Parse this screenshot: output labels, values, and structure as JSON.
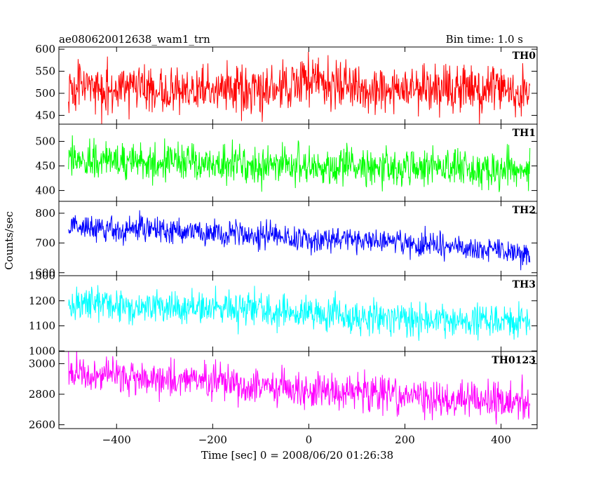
{
  "chart_data": {
    "type": "line",
    "title": "ae080620012638_wam1_trn",
    "subtitle": "Bin time: 1.0 s",
    "xlabel": "Time [sec] 0 = 2008/06/20 01:26:38",
    "ylabel": "Counts/sec",
    "xlim": [
      -520,
      475
    ],
    "x_data_range": [
      -500,
      460
    ],
    "x_ticks": [
      -400,
      -200,
      0,
      200,
      400
    ],
    "x_tick_labels": [
      "−400",
      "−200",
      "0",
      "200",
      "400"
    ],
    "grid": false,
    "panels": [
      {
        "name": "TH0",
        "color": "#ff0000",
        "ylim": [
          430,
          605
        ],
        "y_ticks": [
          450,
          500,
          550,
          600
        ],
        "mean_profile": [
          [
            -500,
            512
          ],
          [
            -300,
            508
          ],
          [
            -100,
            508
          ],
          [
            -30,
            518
          ],
          [
            10,
            528
          ],
          [
            60,
            522
          ],
          [
            150,
            505
          ],
          [
            300,
            510
          ],
          [
            460,
            508
          ]
        ],
        "noise_sd": 27
      },
      {
        "name": "TH1",
        "color": "#00ff00",
        "ylim": [
          378,
          535
        ],
        "y_ticks": [
          400,
          450,
          500
        ],
        "mean_profile": [
          [
            -500,
            462
          ],
          [
            -400,
            458
          ],
          [
            -200,
            455
          ],
          [
            0,
            450
          ],
          [
            200,
            446
          ],
          [
            460,
            442
          ]
        ],
        "noise_sd": 19
      },
      {
        "name": "TH2",
        "color": "#0000ff",
        "ylim": [
          590,
          840
        ],
        "y_ticks": [
          600,
          700,
          800
        ],
        "mean_profile": [
          [
            -500,
            755
          ],
          [
            -300,
            742
          ],
          [
            -100,
            728
          ],
          [
            0,
            715
          ],
          [
            200,
            698
          ],
          [
            460,
            665
          ]
        ],
        "noise_sd": 22
      },
      {
        "name": "TH3",
        "color": "#00ffff",
        "ylim": [
          998,
          1300
        ],
        "y_ticks": [
          1000,
          1100,
          1200,
          1300
        ],
        "mean_profile": [
          [
            -500,
            1198
          ],
          [
            -300,
            1175
          ],
          [
            -100,
            1158
          ],
          [
            0,
            1148
          ],
          [
            200,
            1128
          ],
          [
            460,
            1115
          ]
        ],
        "noise_sd": 34
      },
      {
        "name": "TH0123",
        "color": "#ff00ff",
        "ylim": [
          2575,
          3080
        ],
        "y_ticks": [
          2600,
          2800,
          3000
        ],
        "y_tick_labels": [
          "2600",
          "2800",
          "3000"
        ],
        "mean_profile": [
          [
            -500,
            2938
          ],
          [
            -300,
            2895
          ],
          [
            -100,
            2855
          ],
          [
            0,
            2830
          ],
          [
            200,
            2780
          ],
          [
            460,
            2738
          ]
        ],
        "noise_sd": 60
      }
    ]
  }
}
